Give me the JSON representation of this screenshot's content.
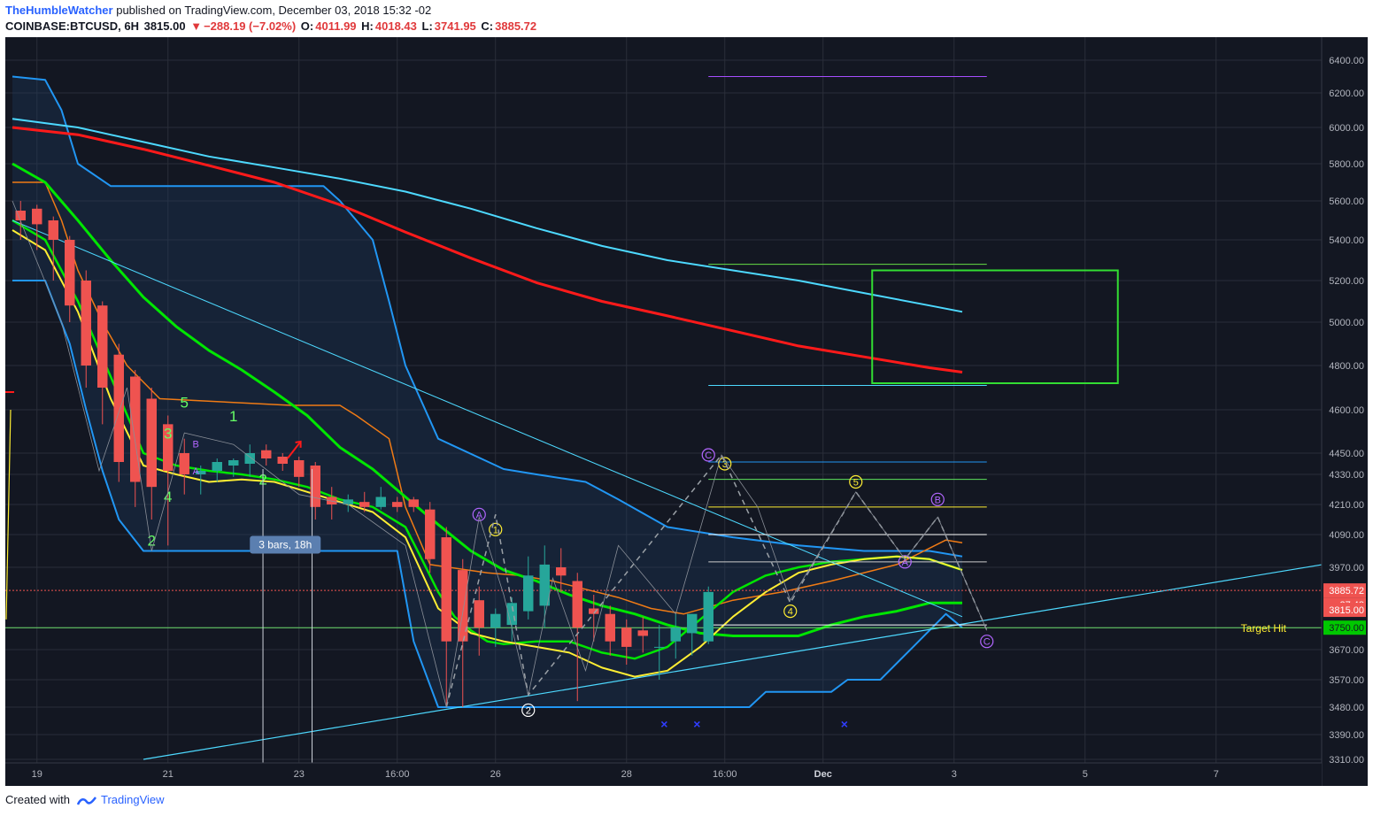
{
  "header": {
    "author": "TheHumbleWatcher",
    "published_text": "published on TradingView.com, December 03, 2018 15:32 -02",
    "symbol": "COINBASE:BTCUSD, 6H",
    "last": "3815.00",
    "change": "−288.19 (−7.02%)",
    "o_label": "O:",
    "o_value": "4011.99",
    "h_label": "H:",
    "h_value": "4018.43",
    "l_label": "L:",
    "l_value": "3741.95",
    "c_label": "C:",
    "c_value": "3885.72"
  },
  "footer": {
    "created_with": "Created with",
    "brand": "TradingView"
  },
  "colors": {
    "background": "#131722",
    "grid": "#2a2e39",
    "candle_up": "#26a69a",
    "candle_down": "#ef5350",
    "ema_green": "#00e600",
    "ema_red": "#ff1a1a",
    "ema_cyan": "#4dd9ff",
    "ema_yellow": "#ffee33",
    "cloud_orange": "#f07b15",
    "cloud_blue": "#2196f3",
    "box_green": "#33dd33"
  },
  "chart_data": {
    "type": "candlestick",
    "ylim": [
      3310,
      6500
    ],
    "price_ticks": [
      "6400.00",
      "6200.00",
      "6000.00",
      "5800.00",
      "5600.00",
      "5400.00",
      "5200.00",
      "5000.00",
      "4800.00",
      "4600.00",
      "4450.00",
      "4330.00",
      "4210.00",
      "4090.00",
      "3970.00",
      "3670.00",
      "3570.00",
      "3480.00",
      "3390.00",
      "3310.00"
    ],
    "time_ticks": [
      {
        "label": "19",
        "bar": 1.5
      },
      {
        "label": "21",
        "bar": 9.5
      },
      {
        "label": "23",
        "bar": 17.5
      },
      {
        "label": "16:00",
        "bar": 23.5
      },
      {
        "label": "26",
        "bar": 29.5
      },
      {
        "label": "28",
        "bar": 37.5
      },
      {
        "label": "16:00",
        "bar": 43.5
      },
      {
        "label": "Dec",
        "bar": 49.5
      },
      {
        "label": "3",
        "bar": 57.5
      },
      {
        "label": "5",
        "bar": 65.5
      },
      {
        "label": "7",
        "bar": 73.5
      }
    ],
    "candles": [
      [
        5550,
        5600,
        5400,
        5500
      ],
      [
        5560,
        5580,
        5350,
        5480
      ],
      [
        5500,
        5520,
        5200,
        5400
      ],
      [
        5400,
        5420,
        5000,
        5080
      ],
      [
        5200,
        5250,
        4700,
        4800
      ],
      [
        5080,
        5100,
        4550,
        4700
      ],
      [
        4850,
        4900,
        4300,
        4400
      ],
      [
        4750,
        4780,
        4200,
        4300
      ],
      [
        4650,
        4700,
        4150,
        4280
      ],
      [
        4550,
        4580,
        4050,
        4350
      ],
      [
        4450,
        4500,
        4250,
        4330
      ],
      [
        4330,
        4380,
        4250,
        4350
      ],
      [
        4350,
        4420,
        4300,
        4400
      ],
      [
        4380,
        4420,
        4320,
        4410
      ],
      [
        4390,
        4480,
        4320,
        4450
      ],
      [
        4460,
        4480,
        4380,
        4420
      ],
      [
        4430,
        4450,
        4350,
        4390
      ],
      [
        4410,
        4430,
        4280,
        4320
      ],
      [
        4380,
        4400,
        4150,
        4200
      ],
      [
        4240,
        4280,
        4150,
        4210
      ],
      [
        4210,
        4250,
        4180,
        4230
      ],
      [
        4220,
        4260,
        4180,
        4200
      ],
      [
        4200,
        4280,
        4190,
        4240
      ],
      [
        4220,
        4240,
        4180,
        4200
      ],
      [
        4230,
        4240,
        4180,
        4200
      ],
      [
        4190,
        4220,
        3950,
        4000
      ],
      [
        4080,
        4120,
        3480,
        3700
      ],
      [
        3960,
        4000,
        3480,
        3700
      ],
      [
        3850,
        3900,
        3650,
        3750
      ],
      [
        3750,
        3820,
        3680,
        3800
      ],
      [
        3760,
        3860,
        3700,
        3840
      ],
      [
        3810,
        4010,
        3780,
        3940
      ],
      [
        3830,
        4050,
        3750,
        3980
      ],
      [
        3970,
        4040,
        3880,
        3940
      ],
      [
        3920,
        3950,
        3500,
        3750
      ],
      [
        3820,
        3870,
        3700,
        3800
      ],
      [
        3800,
        3830,
        3650,
        3700
      ],
      [
        3750,
        3780,
        3620,
        3680
      ],
      [
        3740,
        3790,
        3660,
        3720
      ],
      [
        3680,
        3760,
        3570,
        3680
      ],
      [
        3700,
        3800,
        3640,
        3750
      ],
      [
        3730,
        3800,
        3650,
        3800
      ],
      [
        3700,
        3900,
        3690,
        3880
      ]
    ],
    "series": [
      {
        "name": "",
        "values": []
      }
    ],
    "annotations": {
      "target_label": "Target Hit",
      "target_price": "3750.00",
      "current_price": "3885.72",
      "countdown": "27:48",
      "last_price": "3815.00",
      "bars_label": "3 bars, 18h",
      "wave_labels": [
        "5",
        "3",
        "4",
        "2",
        "1",
        "2",
        "B",
        "A",
        "A",
        "1",
        "2",
        "C",
        "3",
        "4",
        "5",
        "B",
        "A",
        "C"
      ]
    },
    "grid": true
  }
}
